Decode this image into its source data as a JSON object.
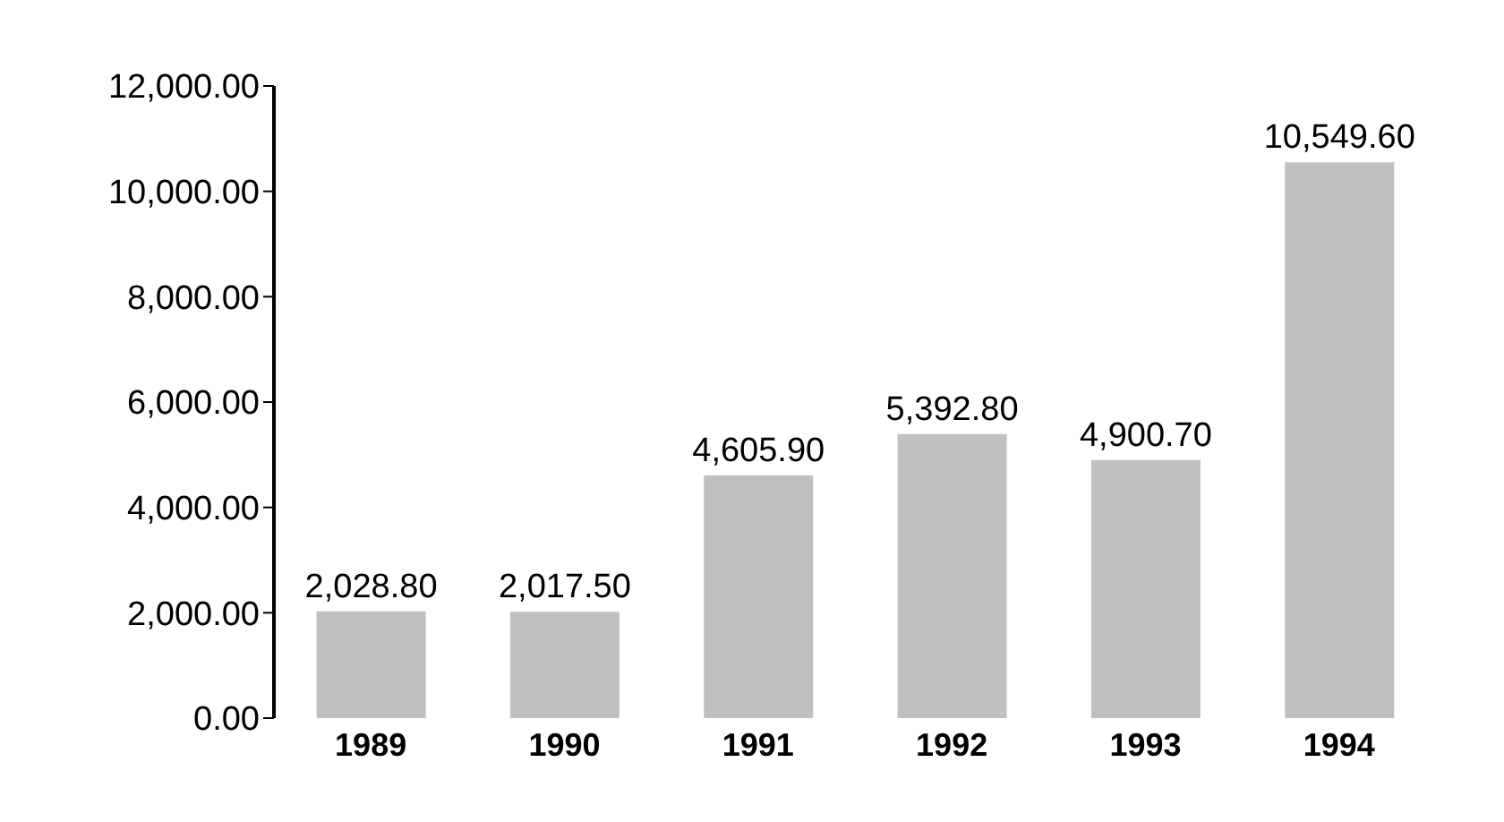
{
  "chart_data": {
    "type": "bar",
    "categories": [
      "1989",
      "1990",
      "1991",
      "1992",
      "1993",
      "1994"
    ],
    "values": [
      2028.8,
      2017.5,
      4605.9,
      5392.8,
      4900.7,
      10549.6
    ],
    "value_labels": [
      "2,028.80",
      "2,017.50",
      "4,605.90",
      "5,392.80",
      "4,900.70",
      "10,549.60"
    ],
    "color": "#c0c0c0",
    "ylim": [
      0,
      12000
    ],
    "yticks": [
      {
        "value": 0,
        "label": "0.00"
      },
      {
        "value": 2000,
        "label": "2,000.00"
      },
      {
        "value": 4000,
        "label": "4,000.00"
      },
      {
        "value": 6000,
        "label": "6,000.00"
      },
      {
        "value": 8000,
        "label": "8,000.00"
      },
      {
        "value": 10000,
        "label": "10,000.00"
      },
      {
        "value": 12000,
        "label": "12,000.00"
      }
    ],
    "grid": false,
    "legend": false
  }
}
